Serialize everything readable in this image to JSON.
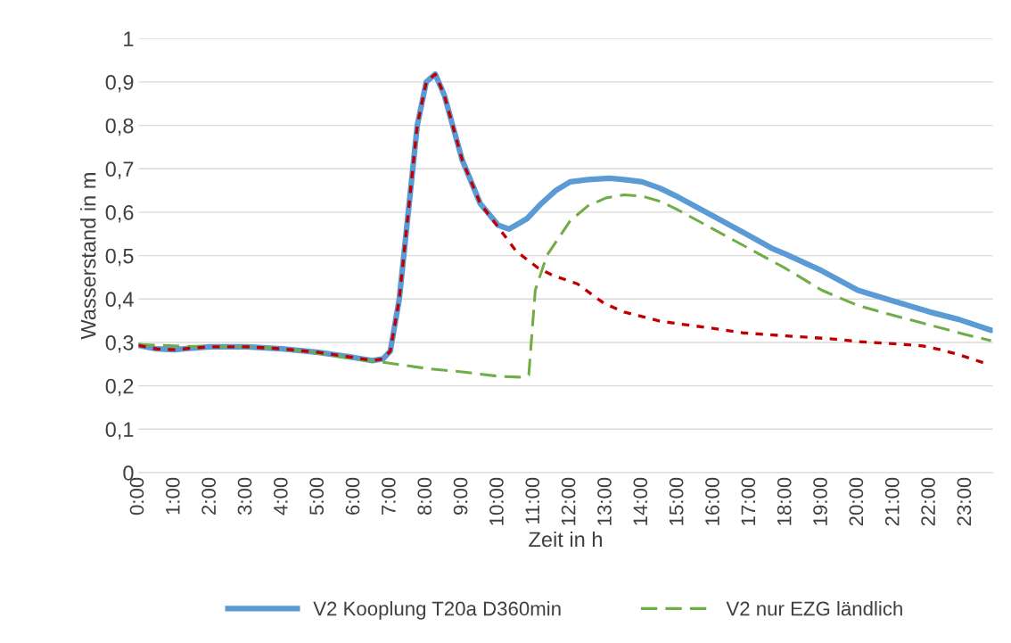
{
  "chart_data": {
    "type": "line",
    "xlabel": "Zeit in h",
    "ylabel": "Wasserstand in m",
    "xlim": [
      0,
      23.75
    ],
    "ylim": [
      0,
      1
    ],
    "xticks": [
      {
        "value": 0,
        "label": "0:00"
      },
      {
        "value": 1,
        "label": "1:00"
      },
      {
        "value": 2,
        "label": "2:00"
      },
      {
        "value": 3,
        "label": "3:00"
      },
      {
        "value": 4,
        "label": "4:00"
      },
      {
        "value": 5,
        "label": "5:00"
      },
      {
        "value": 6,
        "label": "6:00"
      },
      {
        "value": 7,
        "label": "7:00"
      },
      {
        "value": 8,
        "label": "8:00"
      },
      {
        "value": 9,
        "label": "9:00"
      },
      {
        "value": 10,
        "label": "10:00"
      },
      {
        "value": 11,
        "label": "11:00"
      },
      {
        "value": 12,
        "label": "12:00"
      },
      {
        "value": 13,
        "label": "13:00"
      },
      {
        "value": 14,
        "label": "14:00"
      },
      {
        "value": 15,
        "label": "15:00"
      },
      {
        "value": 16,
        "label": "16:00"
      },
      {
        "value": 17,
        "label": "17:00"
      },
      {
        "value": 18,
        "label": "18:00"
      },
      {
        "value": 19,
        "label": "19:00"
      },
      {
        "value": 20,
        "label": "20:00"
      },
      {
        "value": 21,
        "label": "21:00"
      },
      {
        "value": 22,
        "label": "22:00"
      },
      {
        "value": 23,
        "label": "23:00"
      }
    ],
    "yticks": [
      {
        "value": 0,
        "label": "0"
      },
      {
        "value": 0.1,
        "label": "0,1"
      },
      {
        "value": 0.2,
        "label": "0,2"
      },
      {
        "value": 0.3,
        "label": "0,3"
      },
      {
        "value": 0.4,
        "label": "0,4"
      },
      {
        "value": 0.5,
        "label": "0,5"
      },
      {
        "value": 0.6,
        "label": "0,6"
      },
      {
        "value": 0.7,
        "label": "0,7"
      },
      {
        "value": 0.8,
        "label": "0,8"
      },
      {
        "value": 0.9,
        "label": "0,9"
      },
      {
        "value": 1,
        "label": "1"
      }
    ],
    "grid": "y",
    "legend": "bottom",
    "series": [
      {
        "name": "V2 Kooplung T20a D360min",
        "color": "#5b9bd5",
        "line_style": "solid",
        "x": [
          0,
          0.5,
          1,
          1.5,
          2,
          3,
          4,
          5,
          6,
          6.5,
          6.8,
          7,
          7.25,
          7.5,
          7.75,
          8,
          8.25,
          8.5,
          9,
          9.5,
          10,
          10.3,
          10.8,
          11.2,
          11.6,
          12,
          12.5,
          13.1,
          13.5,
          14,
          14.5,
          15,
          16,
          17,
          17.6,
          18,
          19,
          20,
          21,
          22,
          22.8,
          23.7
        ],
        "values": [
          0.293,
          0.285,
          0.283,
          0.287,
          0.29,
          0.29,
          0.285,
          0.277,
          0.265,
          0.258,
          0.262,
          0.28,
          0.4,
          0.6,
          0.8,
          0.9,
          0.918,
          0.87,
          0.72,
          0.62,
          0.57,
          0.561,
          0.585,
          0.62,
          0.65,
          0.67,
          0.675,
          0.678,
          0.675,
          0.67,
          0.655,
          0.635,
          0.59,
          0.545,
          0.517,
          0.503,
          0.465,
          0.42,
          0.395,
          0.37,
          0.353,
          0.328
        ]
      },
      {
        "name": "V2 nur EZG ländlich",
        "color": "#70ad47",
        "line_style": "dashed",
        "x": [
          0,
          1,
          2,
          3,
          4,
          5,
          6,
          6.9,
          8,
          9,
          10,
          10.6,
          10.85,
          11.03,
          11.35,
          12,
          12.5,
          13,
          13.5,
          14,
          14.5,
          15,
          16,
          17,
          18,
          19,
          20,
          21,
          22,
          23,
          23.7
        ],
        "values": [
          0.295,
          0.292,
          0.29,
          0.29,
          0.285,
          0.275,
          0.262,
          0.253,
          0.24,
          0.232,
          0.222,
          0.22,
          0.225,
          0.42,
          0.5,
          0.58,
          0.615,
          0.633,
          0.64,
          0.637,
          0.625,
          0.605,
          0.56,
          0.515,
          0.47,
          0.42,
          0.385,
          0.362,
          0.34,
          0.318,
          0.304
        ]
      },
      {
        "color": "#c00000",
        "line_style": "dotted",
        "x": [
          0,
          0.5,
          1,
          1.5,
          2,
          3,
          4,
          5,
          6,
          6.5,
          6.8,
          7,
          7.25,
          7.5,
          7.75,
          8,
          8.25,
          8.5,
          9,
          9.5,
          9.87,
          10.5,
          11.1,
          11.5,
          12.2,
          12.94,
          13.5,
          14.5,
          15,
          16,
          16.8,
          18,
          19.3,
          20,
          21,
          21.8,
          22.3,
          22.75,
          23.5
        ],
        "values": [
          0.293,
          0.285,
          0.283,
          0.287,
          0.29,
          0.29,
          0.285,
          0.277,
          0.265,
          0.258,
          0.262,
          0.28,
          0.4,
          0.6,
          0.8,
          0.9,
          0.918,
          0.87,
          0.72,
          0.62,
          0.58,
          0.51,
          0.472,
          0.455,
          0.435,
          0.39,
          0.37,
          0.349,
          0.343,
          0.332,
          0.322,
          0.315,
          0.308,
          0.302,
          0.297,
          0.292,
          0.283,
          0.273,
          0.253
        ]
      }
    ]
  }
}
